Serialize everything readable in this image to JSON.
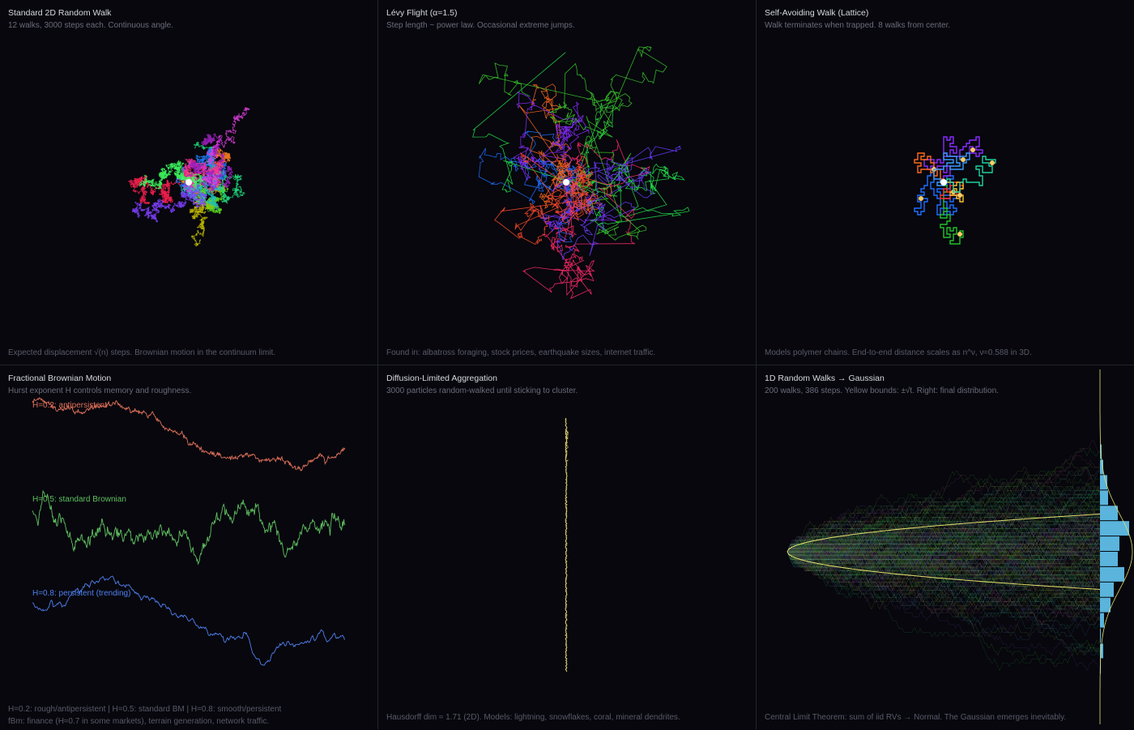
{
  "panels": [
    {
      "title": "Standard 2D Random Walk",
      "subtitle": "12 walks, 3000 steps each. Continuous angle.",
      "footer": "Expected displacement √(n) steps. Brownian motion in the continuum limit."
    },
    {
      "title": "Lévy Flight (α=1.5)",
      "subtitle": "Step length ~ power law. Occasional extreme jumps.",
      "footer": "Found in: albatross foraging, stock prices, earthquake sizes, internet traffic."
    },
    {
      "title": "Self-Avoiding Walk (Lattice)",
      "subtitle": "Walk terminates when trapped. 8 walks from center.",
      "footer": "Models polymer chains. End-to-end distance scales as n^ν, ν≈0.588 in 3D."
    },
    {
      "title": "Fractional Brownian Motion",
      "subtitle": "Hurst exponent H controls memory and roughness.",
      "footer": "H=0.2: rough/antipersistent | H=0.5: standard BM | H=0.8: smooth/persistent",
      "footer2": "fBm: finance (H≈0.7 in some markets), terrain generation, network traffic."
    },
    {
      "title": "Diffusion-Limited Aggregation",
      "subtitle": "3000 particles random-walked until sticking to cluster.",
      "footer": "Hausdorff dim ≈ 1.71 (2D). Models: lightning, snowflakes, coral, mineral dendrites."
    },
    {
      "title": "1D Random Walks → Gaussian",
      "subtitle": "200 walks, 386 steps. Yellow bounds: ±√t. Right: final distribution.",
      "footer": "Central Limit Theorem: sum of iid RVs → Normal. The Gaussian emerges inevitably."
    }
  ],
  "chart_data": [
    {
      "type": "line",
      "title": "Standard 2D Random Walk",
      "walks": 12,
      "steps": 3000,
      "colors": [
        "#ff2050",
        "#ff8020",
        "#c8c000",
        "#60e020",
        "#20e080",
        "#20c0c0",
        "#2080ff",
        "#8040ff",
        "#e040e0",
        "#ff3090",
        "#a020c0",
        "#40ff60"
      ]
    },
    {
      "type": "line",
      "title": "Lévy Flight (α=1.5)",
      "alpha": 1.5,
      "walks": 8,
      "colors": [
        "#1f6fff",
        "#ff6a1a",
        "#22e04a",
        "#8a2cff",
        "#ff2a6a",
        "#39c82a",
        "#6a3cff",
        "#ff4a2a"
      ]
    },
    {
      "type": "line",
      "title": "Self-Avoiding Walk (Lattice)",
      "walks": 8,
      "colors": [
        "#1f6fff",
        "#22c02a",
        "#ff2a2a",
        "#8a2cff",
        "#ffc02a",
        "#20d0a0",
        "#ff6a1a",
        "#3a9aff"
      ]
    },
    {
      "type": "line",
      "title": "Fractional Brownian Motion",
      "series": [
        {
          "name": "H=0.2: antipersistent",
          "hurst": 0.2,
          "color": "#e0705a"
        },
        {
          "name": "H=0.5: standard Brownian",
          "hurst": 0.5,
          "color": "#60c060"
        },
        {
          "name": "H=0.8: persistent (trending)",
          "hurst": 0.8,
          "color": "#5080f0"
        }
      ]
    },
    {
      "type": "scatter",
      "title": "Diffusion-Limited Aggregation",
      "particles": 3000,
      "color": "#e0d070"
    },
    {
      "type": "line",
      "title": "1D Random Walks → Gaussian",
      "walks": 200,
      "steps": 386,
      "bound_color": "#e8e070",
      "hist_color": "#5ab4dc"
    }
  ]
}
